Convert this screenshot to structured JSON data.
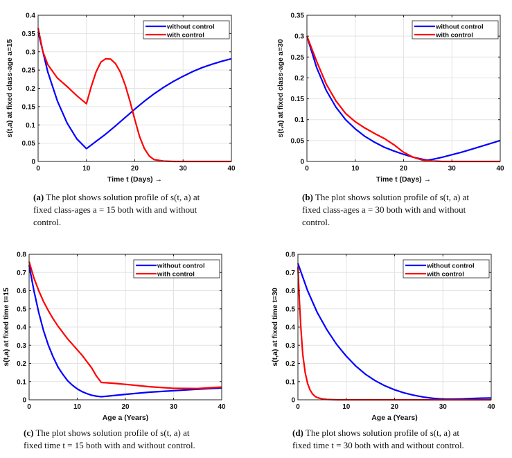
{
  "chart_data": [
    {
      "type": "line",
      "panel": "(a)",
      "xlabel": "Time t (Days) →",
      "ylabel": "s(t,a) at fixed class-age a=15",
      "xlim": [
        0,
        40
      ],
      "ylim": [
        0,
        0.4
      ],
      "xticks": [
        0,
        10,
        20,
        30,
        40
      ],
      "yticks": [
        0,
        0.05,
        0.1,
        0.15,
        0.2,
        0.25,
        0.3,
        0.35,
        0.4
      ],
      "ytick_labels": [
        "0",
        "0.05",
        "0.1",
        "0.15",
        "0.2",
        "0.25",
        "0.3",
        "0.35",
        "0.4"
      ],
      "grid": true,
      "legend_position": "top-right",
      "series": [
        {
          "name": "without control",
          "color": "#0000ff",
          "x": [
            0,
            2,
            4,
            6,
            8,
            10,
            12,
            14,
            16,
            18,
            20,
            22,
            24,
            26,
            28,
            30,
            32,
            34,
            36,
            38,
            40
          ],
          "y": [
            0.355,
            0.245,
            0.165,
            0.105,
            0.062,
            0.035,
            0.055,
            0.075,
            0.097,
            0.12,
            0.143,
            0.165,
            0.185,
            0.203,
            0.219,
            0.233,
            0.246,
            0.257,
            0.266,
            0.274,
            0.281
          ]
        },
        {
          "name": "with control",
          "color": "#ff0000",
          "x": [
            0,
            1,
            2,
            4,
            6,
            8,
            10,
            11,
            12,
            13,
            14,
            15,
            16,
            17,
            18,
            19,
            20,
            21,
            22,
            23,
            24,
            26,
            28,
            30,
            40
          ],
          "y": [
            0.365,
            0.3,
            0.265,
            0.228,
            0.205,
            0.18,
            0.158,
            0.205,
            0.245,
            0.272,
            0.281,
            0.28,
            0.268,
            0.245,
            0.21,
            0.165,
            0.115,
            0.068,
            0.035,
            0.015,
            0.005,
            0.001,
            0,
            0,
            0
          ]
        }
      ]
    },
    {
      "type": "line",
      "panel": "(b)",
      "xlabel": "Time t (Days) →",
      "ylabel": "s(t,a) at fixed class-age a=30",
      "xlim": [
        0,
        40
      ],
      "ylim": [
        0,
        0.35
      ],
      "xticks": [
        0,
        10,
        20,
        30,
        40
      ],
      "yticks": [
        0,
        0.05,
        0.1,
        0.15,
        0.2,
        0.25,
        0.3,
        0.35
      ],
      "ytick_labels": [
        "0",
        "0.05",
        "0.1",
        "0.15",
        "0.2",
        "0.25",
        "0.3",
        "0.35"
      ],
      "grid": true,
      "legend_position": "top-right",
      "series": [
        {
          "name": "without control",
          "color": "#0000ff",
          "x": [
            0,
            2,
            4,
            6,
            8,
            10,
            12,
            14,
            16,
            18,
            20,
            22,
            24,
            25,
            26,
            28,
            30,
            32,
            34,
            36,
            38,
            40
          ],
          "y": [
            0.3,
            0.225,
            0.17,
            0.13,
            0.1,
            0.078,
            0.06,
            0.046,
            0.034,
            0.025,
            0.017,
            0.01,
            0.005,
            0.003,
            0.005,
            0.01,
            0.016,
            0.022,
            0.029,
            0.036,
            0.043,
            0.05
          ]
        },
        {
          "name": "with control",
          "color": "#ff0000",
          "x": [
            0,
            2,
            4,
            6,
            8,
            10,
            12,
            14,
            16,
            18,
            20,
            22,
            24,
            26,
            28,
            30,
            40
          ],
          "y": [
            0.3,
            0.24,
            0.185,
            0.145,
            0.115,
            0.095,
            0.08,
            0.067,
            0.055,
            0.04,
            0.022,
            0.01,
            0.003,
            0.001,
            0,
            0,
            0
          ]
        }
      ]
    },
    {
      "type": "line",
      "panel": "(c)",
      "xlabel": "Age a (Years)",
      "ylabel": "s(t,a) at fixed time t=15",
      "xlim": [
        0,
        40
      ],
      "ylim": [
        0,
        0.8
      ],
      "xticks": [
        0,
        10,
        20,
        30,
        40
      ],
      "yticks": [
        0,
        0.1,
        0.2,
        0.3,
        0.4,
        0.5,
        0.6,
        0.7,
        0.8
      ],
      "ytick_labels": [
        "0",
        "0.1",
        "0.2",
        "0.3",
        "0.4",
        "0.5",
        "0.6",
        "0.7",
        "0.8"
      ],
      "grid": true,
      "legend_position": "top-right",
      "series": [
        {
          "name": "without control",
          "color": "#0000ff",
          "x": [
            0,
            1,
            2,
            3,
            4,
            5,
            6,
            7,
            8,
            9,
            10,
            11,
            12,
            13,
            14,
            15,
            17,
            20,
            25,
            30,
            35,
            40
          ],
          "y": [
            0.74,
            0.6,
            0.48,
            0.38,
            0.3,
            0.235,
            0.18,
            0.14,
            0.105,
            0.08,
            0.06,
            0.045,
            0.034,
            0.025,
            0.02,
            0.017,
            0.022,
            0.03,
            0.042,
            0.05,
            0.058,
            0.065
          ]
        },
        {
          "name": "with control",
          "color": "#ff0000",
          "x": [
            0,
            1,
            2,
            3,
            4,
            5,
            6,
            7,
            8,
            9,
            10,
            11,
            12,
            13,
            14,
            15,
            17,
            20,
            25,
            30,
            35,
            40
          ],
          "y": [
            0.76,
            0.67,
            0.6,
            0.54,
            0.49,
            0.445,
            0.405,
            0.37,
            0.335,
            0.305,
            0.275,
            0.245,
            0.21,
            0.175,
            0.13,
            0.095,
            0.092,
            0.085,
            0.072,
            0.063,
            0.062,
            0.07
          ]
        }
      ]
    },
    {
      "type": "line",
      "panel": "(d)",
      "xlabel": "Age a (Years)",
      "ylabel": "s(t,a) at fixed time t=30",
      "xlim": [
        0,
        40
      ],
      "ylim": [
        0,
        0.8
      ],
      "xticks": [
        0,
        10,
        20,
        30,
        40
      ],
      "yticks": [
        0,
        0.1,
        0.2,
        0.3,
        0.4,
        0.5,
        0.6,
        0.7,
        0.8
      ],
      "ytick_labels": [
        "0",
        "0.1",
        "0.2",
        "0.3",
        "0.4",
        "0.5",
        "0.6",
        "0.7",
        "0.8"
      ],
      "grid": true,
      "legend_position": "top-right",
      "series": [
        {
          "name": "without control",
          "color": "#0000ff",
          "x": [
            0,
            2,
            4,
            6,
            8,
            10,
            12,
            14,
            16,
            18,
            20,
            22,
            24,
            26,
            28,
            30,
            32,
            34,
            36,
            38,
            40
          ],
          "y": [
            0.75,
            0.6,
            0.48,
            0.385,
            0.305,
            0.24,
            0.185,
            0.14,
            0.105,
            0.077,
            0.055,
            0.038,
            0.025,
            0.015,
            0.008,
            0.004,
            0.004,
            0.005,
            0.007,
            0.009,
            0.01
          ]
        },
        {
          "name": "with control",
          "color": "#ff0000",
          "x": [
            0,
            0.3,
            0.6,
            1,
            1.5,
            2,
            2.5,
            3,
            3.5,
            4,
            5,
            6,
            8,
            10,
            20,
            30,
            40
          ],
          "y": [
            0.73,
            0.55,
            0.4,
            0.25,
            0.15,
            0.09,
            0.055,
            0.033,
            0.02,
            0.012,
            0.005,
            0.002,
            0,
            0,
            0,
            0,
            0
          ]
        }
      ]
    }
  ],
  "captions": [
    {
      "label": "(a)",
      "line1": "The plot shows solution profile of s(t, a) at",
      "line2": "fixed class-ages a = 15 both with and without",
      "line3": "control."
    },
    {
      "label": "(b)",
      "line1": "The plot shows solution profile of s(t, a) at",
      "line2": "fixed class-ages a = 30 both with and without",
      "line3": "control."
    },
    {
      "label": "(c)",
      "line1": "The plot shows solution profile of s(t, a) at",
      "line2": "fixed time t = 15 both with and without control.",
      "line3": ""
    },
    {
      "label": "(d)",
      "line1": "The plot shows solution profile of s(t, a) at",
      "line2": "fixed time t = 30 both with and without control.",
      "line3": ""
    }
  ]
}
